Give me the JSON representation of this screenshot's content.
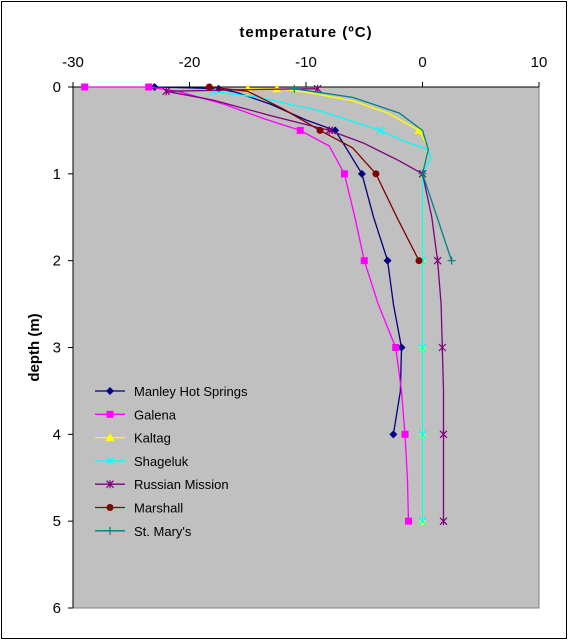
{
  "chart_data": {
    "type": "line",
    "title": "temperature (ºC)",
    "ylabel": "depth (m)",
    "xlabel": "",
    "x_axis_position": "top",
    "y_axis_reversed": true,
    "xlim": [
      -30,
      10
    ],
    "ylim": [
      0,
      6
    ],
    "x_ticks": [
      "-30",
      "-20",
      "-10",
      "0",
      "10"
    ],
    "y_ticks": [
      "0",
      "1",
      "2",
      "3",
      "4",
      "5",
      "6"
    ],
    "plot_background": "#c0c0c0",
    "grid": false,
    "legend_position": "bottom-left",
    "series": [
      {
        "name": "Manley Hot Springs",
        "color": "#000080",
        "marker": "diamond",
        "points": [
          [
            -23,
            0
          ],
          [
            -17.5,
            0.02
          ],
          [
            -7.5,
            0.5
          ],
          [
            -5.2,
            1.0
          ],
          [
            -3.0,
            2.0
          ],
          [
            -1.8,
            3.0
          ],
          [
            -2.5,
            4.0
          ]
        ],
        "curve": [
          [
            -23,
            0
          ],
          [
            -20,
            0.01
          ],
          [
            -17.5,
            0.02
          ],
          [
            -16,
            0.06
          ],
          [
            -13,
            0.2
          ],
          [
            -10,
            0.38
          ],
          [
            -7.5,
            0.5
          ],
          [
            -6.8,
            0.65
          ],
          [
            -5.2,
            1.0
          ],
          [
            -4.2,
            1.5
          ],
          [
            -3.0,
            2.0
          ],
          [
            -2.5,
            2.5
          ],
          [
            -1.8,
            3.0
          ],
          [
            -1.9,
            3.5
          ],
          [
            -2.5,
            4.0
          ]
        ]
      },
      {
        "name": "Galena",
        "color": "#ff00ff",
        "marker": "square",
        "points": [
          [
            -29,
            0
          ],
          [
            -23.5,
            0
          ],
          [
            -10.5,
            0.5
          ],
          [
            -6.7,
            1.0
          ],
          [
            -5.0,
            2.0
          ],
          [
            -2.3,
            3.0
          ],
          [
            -1.5,
            4.0
          ],
          [
            -1.2,
            5.0
          ]
        ],
        "curve": [
          [
            -29,
            0
          ],
          [
            -26,
            0
          ],
          [
            -23.5,
            0
          ],
          [
            -21,
            0.05
          ],
          [
            -17,
            0.2
          ],
          [
            -13.5,
            0.37
          ],
          [
            -10.5,
            0.5
          ],
          [
            -8,
            0.68
          ],
          [
            -6.7,
            1.0
          ],
          [
            -5.8,
            1.5
          ],
          [
            -5.0,
            2.0
          ],
          [
            -3.8,
            2.5
          ],
          [
            -2.3,
            3.0
          ],
          [
            -1.8,
            3.5
          ],
          [
            -1.5,
            4.0
          ],
          [
            -1.3,
            4.5
          ],
          [
            -1.2,
            5.0
          ]
        ]
      },
      {
        "name": "Kaltag",
        "color": "#ffff00",
        "marker": "triangle",
        "points": [
          [
            -15,
            0.02
          ],
          [
            -12.5,
            0.02
          ],
          [
            -0.3,
            0.5
          ],
          [
            0,
            1.0
          ],
          [
            0,
            2.0
          ],
          [
            0,
            3.0
          ],
          [
            0,
            4.0
          ],
          [
            0,
            5.0
          ]
        ],
        "curve": [
          [
            -15,
            0.02
          ],
          [
            -12.5,
            0.02
          ],
          [
            -10,
            0.06
          ],
          [
            -6,
            0.16
          ],
          [
            -3,
            0.3
          ],
          [
            -0.3,
            0.5
          ],
          [
            0.5,
            0.7
          ],
          [
            0,
            1.0
          ],
          [
            0,
            2.0
          ],
          [
            0,
            3.0
          ],
          [
            0,
            4.0
          ],
          [
            0,
            5.0
          ]
        ]
      },
      {
        "name": "Shageluk",
        "color": "#00ffff",
        "marker": "x",
        "points": [
          [
            -18,
            0.05
          ],
          [
            -3.6,
            0.5
          ],
          [
            0,
            1.0
          ],
          [
            0,
            2.0
          ],
          [
            0,
            3.0
          ],
          [
            0,
            4.0
          ],
          [
            0,
            5.0
          ]
        ],
        "curve": [
          [
            -18,
            0.05
          ],
          [
            -14,
            0.12
          ],
          [
            -9,
            0.27
          ],
          [
            -3.6,
            0.5
          ],
          [
            -1.5,
            0.63
          ],
          [
            0.5,
            0.72
          ],
          [
            0.7,
            0.82
          ],
          [
            0,
            1.0
          ],
          [
            0,
            2.0
          ],
          [
            0,
            3.0
          ],
          [
            0,
            4.0
          ],
          [
            0,
            5.0
          ]
        ]
      },
      {
        "name": "Russian Mission",
        "color": "#800080",
        "marker": "asterisk",
        "points": [
          [
            -9,
            0.02
          ],
          [
            -22,
            0.05
          ],
          [
            -8,
            0.5
          ],
          [
            0,
            1.0
          ],
          [
            1.3,
            2.0
          ],
          [
            1.7,
            3.0
          ],
          [
            1.8,
            4.0
          ],
          [
            1.8,
            5.0
          ]
        ],
        "curve": [
          [
            -9,
            0.02
          ],
          [
            -15,
            0.03
          ],
          [
            -22,
            0.05
          ],
          [
            -18,
            0.15
          ],
          [
            -13,
            0.33
          ],
          [
            -8,
            0.5
          ],
          [
            -5,
            0.65
          ],
          [
            -2,
            0.85
          ],
          [
            0,
            1.0
          ],
          [
            0.8,
            1.5
          ],
          [
            1.3,
            2.0
          ],
          [
            1.6,
            2.5
          ],
          [
            1.7,
            3.0
          ],
          [
            1.8,
            3.5
          ],
          [
            1.8,
            4.0
          ],
          [
            1.8,
            4.5
          ],
          [
            1.8,
            5.0
          ]
        ]
      },
      {
        "name": "Marshall",
        "color": "#800000",
        "marker": "circle",
        "points": [
          [
            -18.3,
            0
          ],
          [
            -8.8,
            0.5
          ],
          [
            -4.0,
            1.0
          ],
          [
            -0.3,
            2.0
          ]
        ],
        "curve": [
          [
            -18.3,
            0
          ],
          [
            -15,
            0.05
          ],
          [
            -12,
            0.25
          ],
          [
            -8.8,
            0.5
          ],
          [
            -6,
            0.7
          ],
          [
            -4.0,
            1.0
          ],
          [
            -2.2,
            1.5
          ],
          [
            -0.3,
            2.0
          ]
        ]
      },
      {
        "name": "St. Mary's",
        "color": "#008080",
        "marker": "plus",
        "points": [
          [
            -11,
            0.02
          ],
          [
            0,
            1.0
          ],
          [
            2.5,
            2.0
          ]
        ],
        "curve": [
          [
            -11,
            0.02
          ],
          [
            -6,
            0.12
          ],
          [
            -2,
            0.3
          ],
          [
            0,
            0.5
          ],
          [
            0.5,
            0.72
          ],
          [
            0,
            1.0
          ],
          [
            1.0,
            1.4
          ],
          [
            2.5,
            2.0
          ]
        ]
      }
    ]
  }
}
